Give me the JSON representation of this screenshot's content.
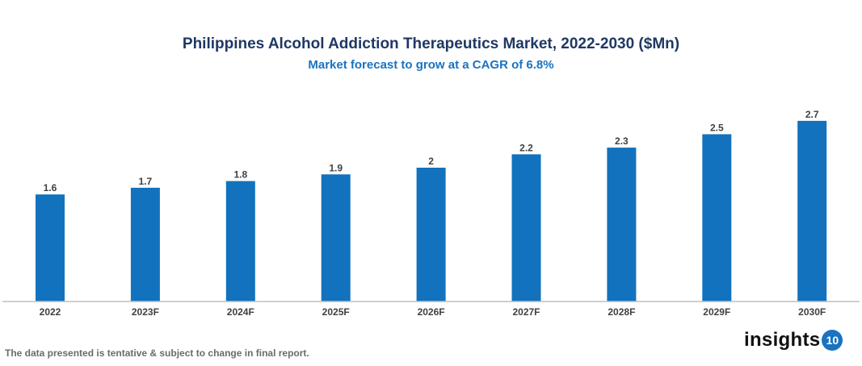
{
  "chart_data": {
    "type": "bar",
    "title": "Philippines Alcohol Addiction Therapeutics Market, 2022-2030 ($Mn)",
    "subtitle": "Market forecast to grow at a CAGR of 6.8%",
    "categories": [
      "2022",
      "2023F",
      "2024F",
      "2025F",
      "2026F",
      "2027F",
      "2028F",
      "2029F",
      "2030F"
    ],
    "values": [
      1.6,
      1.7,
      1.8,
      1.9,
      2,
      2.2,
      2.3,
      2.5,
      2.7
    ],
    "data_labels": [
      "1.6",
      "1.7",
      "1.8",
      "1.9",
      "2",
      "2.2",
      "2.3",
      "2.5",
      "2.7"
    ],
    "xlabel": "",
    "ylabel": "",
    "ylim": [
      0,
      2.7
    ],
    "grid": false,
    "bar_color": "#1272bd"
  },
  "footer": {
    "note": "The data presented is tentative & subject to change in final report.",
    "logo_text": "insights",
    "logo_badge": "10"
  }
}
